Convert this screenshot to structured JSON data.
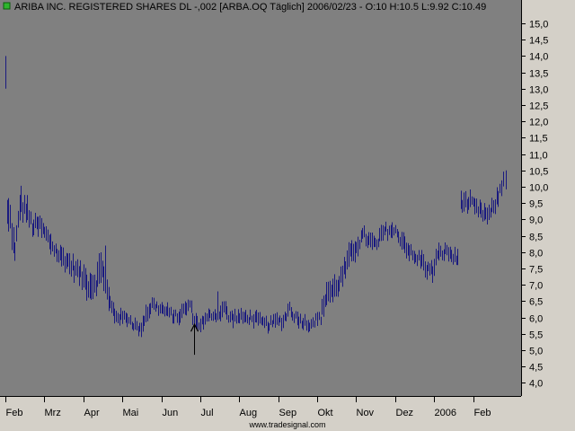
{
  "header": {
    "title": "ARIBA INC. REGISTERED SHARES DL -,002 [ARBA.OQ  Täglich] 2006/02/23 - O:10 H:10.5 L:9.92 C:10.49",
    "indicator_color": "#2db52d"
  },
  "footer": {
    "source": "www.tradesignal.com"
  },
  "colors": {
    "background": "#d4d0c8",
    "plot": "#808080",
    "bars": "#1a1a80",
    "axis": "#000000"
  },
  "chart_data": {
    "type": "ohlc-bar",
    "title": "ARIBA INC. REGISTERED SHARES DL -,002 [ARBA.OQ  Täglich] 2006/02/23 - O:10 H:10.5 L:9.92 C:10.49",
    "ylim": [
      3.6,
      15.6
    ],
    "y_ticks": [
      "15,0",
      "14,5",
      "14,0",
      "13,5",
      "13,0",
      "12,5",
      "12,0",
      "11,5",
      "11,0",
      "10,5",
      "10,0",
      "9,5",
      "9,0",
      "8,5",
      "8,0",
      "7,5",
      "7,0",
      "6,5",
      "6,0",
      "5,5",
      "5,0",
      "4,5",
      "4,0"
    ],
    "y_tick_values": [
      15.0,
      14.5,
      14.0,
      13.5,
      13.0,
      12.5,
      12.0,
      11.5,
      11.0,
      10.5,
      10.0,
      9.5,
      9.0,
      8.5,
      8.0,
      7.5,
      7.0,
      6.5,
      6.0,
      5.5,
      5.0,
      4.5,
      4.0
    ],
    "x_labels": [
      "Feb",
      "Mrz",
      "Apr",
      "Mai",
      "Jun",
      "Jul",
      "Aug",
      "Sep",
      "Okt",
      "Nov",
      "Dez",
      "2006",
      "Feb"
    ],
    "x_label_days": [
      0,
      25,
      50,
      75,
      100,
      125,
      150,
      175,
      200,
      225,
      250,
      275,
      300
    ],
    "days_total": 325,
    "last_close": 10.49,
    "anchors": [
      [
        0,
        9.2,
        1.2
      ],
      [
        3,
        9.0,
        0.8
      ],
      [
        6,
        7.9,
        0.8
      ],
      [
        9,
        9.5,
        0.8
      ],
      [
        13,
        9.3,
        0.8
      ],
      [
        17,
        8.8,
        0.6
      ],
      [
        22,
        8.8,
        0.6
      ],
      [
        26,
        8.5,
        0.6
      ],
      [
        30,
        8.2,
        0.6
      ],
      [
        34,
        7.9,
        0.6
      ],
      [
        38,
        7.8,
        0.6
      ],
      [
        42,
        7.6,
        0.6
      ],
      [
        46,
        7.4,
        0.6
      ],
      [
        50,
        7.2,
        0.7
      ],
      [
        54,
        7.0,
        0.8
      ],
      [
        58,
        7.1,
        0.7
      ],
      [
        62,
        7.6,
        1.0
      ],
      [
        66,
        6.5,
        0.7
      ],
      [
        70,
        6.1,
        0.5
      ],
      [
        74,
        6.0,
        0.4
      ],
      [
        78,
        6.0,
        0.4
      ],
      [
        82,
        5.8,
        0.4
      ],
      [
        86,
        5.6,
        0.4
      ],
      [
        90,
        6.1,
        0.5
      ],
      [
        94,
        6.4,
        0.4
      ],
      [
        98,
        6.3,
        0.4
      ],
      [
        102,
        6.2,
        0.4
      ],
      [
        106,
        6.1,
        0.4
      ],
      [
        110,
        6.0,
        0.4
      ],
      [
        114,
        6.2,
        0.4
      ],
      [
        118,
        6.4,
        0.4
      ],
      [
        121,
        5.9,
        0.4
      ],
      [
        124,
        5.8,
        0.4
      ],
      [
        128,
        5.9,
        0.4
      ],
      [
        132,
        6.1,
        0.4
      ],
      [
        136,
        6.1,
        0.4
      ],
      [
        140,
        6.3,
        0.6
      ],
      [
        143,
        6.0,
        0.4
      ],
      [
        146,
        6.0,
        0.4
      ],
      [
        150,
        6.0,
        0.4
      ],
      [
        154,
        6.0,
        0.4
      ],
      [
        158,
        6.0,
        0.4
      ],
      [
        162,
        5.9,
        0.4
      ],
      [
        166,
        5.8,
        0.4
      ],
      [
        170,
        5.8,
        0.4
      ],
      [
        174,
        5.9,
        0.4
      ],
      [
        178,
        5.9,
        0.4
      ],
      [
        182,
        6.3,
        0.5
      ],
      [
        186,
        6.0,
        0.4
      ],
      [
        190,
        5.9,
        0.4
      ],
      [
        194,
        5.8,
        0.4
      ],
      [
        198,
        5.9,
        0.4
      ],
      [
        202,
        6.0,
        0.4
      ],
      [
        206,
        6.8,
        0.8
      ],
      [
        210,
        6.8,
        0.7
      ],
      [
        214,
        7.1,
        0.6
      ],
      [
        218,
        7.5,
        0.7
      ],
      [
        222,
        8.0,
        0.7
      ],
      [
        226,
        8.3,
        0.6
      ],
      [
        230,
        8.5,
        0.5
      ],
      [
        234,
        8.3,
        0.5
      ],
      [
        238,
        8.2,
        0.5
      ],
      [
        242,
        8.6,
        0.5
      ],
      [
        246,
        8.7,
        0.5
      ],
      [
        250,
        8.6,
        0.5
      ],
      [
        254,
        8.4,
        0.5
      ],
      [
        258,
        8.1,
        0.5
      ],
      [
        262,
        7.8,
        0.5
      ],
      [
        266,
        7.8,
        0.5
      ],
      [
        270,
        7.5,
        0.5
      ],
      [
        274,
        7.4,
        0.5
      ],
      [
        276,
        7.8,
        0.5
      ],
      [
        280,
        8.0,
        0.5
      ],
      [
        284,
        8.0,
        0.5
      ],
      [
        288,
        7.8,
        0.5
      ],
      [
        290,
        7.8,
        0.5
      ],
      [
        292,
        9.6,
        0.6
      ],
      [
        295,
        9.5,
        0.5
      ],
      [
        298,
        9.5,
        0.5
      ],
      [
        302,
        9.3,
        0.5
      ],
      [
        306,
        9.2,
        0.5
      ],
      [
        310,
        9.1,
        0.5
      ],
      [
        313,
        9.4,
        0.5
      ],
      [
        316,
        9.7,
        0.5
      ],
      [
        319,
        10.2,
        0.6
      ]
    ],
    "outliers": [
      {
        "day": 0,
        "high": 14.0,
        "low": 13.0
      },
      {
        "day": 64,
        "high": 8.2,
        "low": 7.2
      },
      {
        "day": 136,
        "high": 6.8,
        "low": 6.2
      }
    ],
    "gaps": [
      [
        291,
        291
      ]
    ],
    "annotation": {
      "type": "arrow-up",
      "day": 121,
      "value": 5.05
    }
  }
}
